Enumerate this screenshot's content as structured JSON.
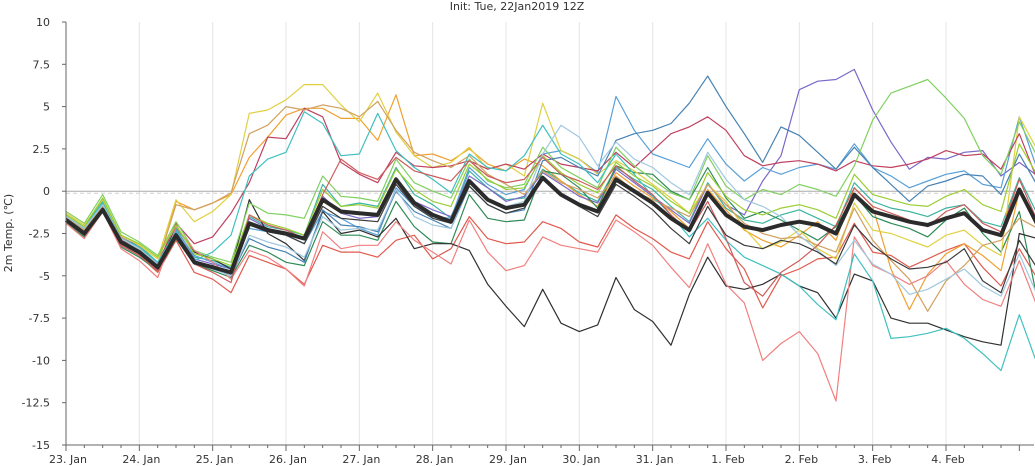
{
  "chart_data": {
    "type": "line",
    "title": "Init: Tue, 22Jan2019 12Z",
    "ylabel": "2m Temp. (℃)",
    "ylim": [
      -15,
      10
    ],
    "yticks": [
      10,
      7.5,
      5,
      2.5,
      0,
      -2.5,
      -5,
      -7.5,
      -10,
      -12.5,
      -15
    ],
    "ytick_labels": [
      "10",
      "7.5",
      "5",
      "2.5",
      "0",
      "-2.5",
      "-5",
      "-7.5",
      "-10",
      "-12.5",
      "-15"
    ],
    "xlim": [
      0,
      13.2
    ],
    "xticks": [
      0,
      1,
      2,
      3,
      4,
      5,
      6,
      7,
      8,
      9,
      10,
      11,
      12
    ],
    "xtick_labels": [
      "23. Jan",
      "24. Jan",
      "25. Jan",
      "26. Jan",
      "27. Jan",
      "28. Jan",
      "29. Jan",
      "30. Jan",
      "31. Jan",
      "1. Feb",
      "2. Feb",
      "3. Feb",
      "4. Feb"
    ],
    "x_step_days": 0.25,
    "grid": "vertical",
    "zero_line": true,
    "mean_color": "#2b2b2b",
    "series_colors": [
      "#e05a4e",
      "#3cb4a0",
      "#f0a030",
      "#7b68c8",
      "#2e8b57",
      "#5aa0d8",
      "#e0d040",
      "#303030",
      "#c04060",
      "#80d060",
      "#f08080",
      "#4682b4",
      "#d2a060",
      "#40c0c0",
      "#9acd32",
      "#a0c8e0",
      "#cd5c5c",
      "#3c3c3c"
    ],
    "mean": [
      -1.7,
      -2.5,
      -1.1,
      -3.0,
      -3.6,
      -4.5,
      -2.6,
      -4.2,
      -4.5,
      -4.8,
      -1.9,
      -2.3,
      -2.5,
      -2.8,
      -0.5,
      -1.2,
      -1.3,
      -1.4,
      0.7,
      -0.7,
      -1.4,
      -1.8,
      0.6,
      -0.5,
      -1.0,
      -0.8,
      0.8,
      -0.2,
      -0.8,
      -1.2,
      0.7,
      0.0,
      -0.7,
      -1.6,
      -2.3,
      -0.1,
      -1.4,
      -2.1,
      -2.3,
      -2.0,
      -1.8,
      -2.0,
      -2.5,
      -0.2,
      -1.2,
      -1.5,
      -1.8,
      -2.0,
      -1.6,
      -1.3,
      -2.3,
      -2.6,
      0.1,
      -2.0
    ],
    "series": [
      {
        "values": [
          -1.8,
          -2.5,
          -1.0,
          -3.2,
          -3.8,
          -4.8,
          -2.9,
          -4.8,
          -5.2,
          -6.0,
          -3.8,
          -4.2,
          -4.6,
          -5.5,
          -3.2,
          -3.6,
          -3.6,
          -3.9,
          -2.9,
          -2.6,
          -4.0,
          -3.4,
          -1.5,
          -2.8,
          -3.1,
          -3.0,
          -1.8,
          -2.2,
          -3.0,
          -3.3,
          -1.4,
          -2.2,
          -2.8,
          -3.6,
          -4.0,
          -1.8,
          -3.4,
          -4.6,
          -6.9,
          -5.0,
          -4.6,
          -4.0,
          -3.9,
          -1.9,
          -3.6,
          -3.8,
          -4.5,
          -4.0,
          -3.5,
          -3.1,
          -4.5,
          -5.6,
          -3.4,
          -5.2
        ]
      },
      {
        "values": [
          -1.4,
          -2.1,
          -0.6,
          -2.8,
          -3.2,
          -4.2,
          -2.2,
          -3.9,
          -4.1,
          -4.5,
          -1.5,
          -2.1,
          -2.3,
          -2.6,
          0.4,
          -0.9,
          -0.7,
          -0.9,
          1.4,
          -0.2,
          -0.8,
          -1.6,
          1.2,
          0.2,
          -0.5,
          -0.4,
          1.3,
          0.6,
          -0.1,
          -0.6,
          1.4,
          0.7,
          0.1,
          -0.9,
          -1.8,
          0.5,
          -1.0,
          -1.7,
          -1.9,
          -1.4,
          -1.1,
          -1.6,
          -2.1,
          0.5,
          -0.6,
          -1.0,
          -1.2,
          -1.5,
          -1.0,
          -0.8,
          -1.8,
          -2.1,
          0.8,
          -1.4
        ]
      },
      {
        "values": [
          -1.6,
          -2.4,
          -0.9,
          -2.9,
          -3.5,
          -4.4,
          -0.6,
          -1.1,
          -0.7,
          -0.2,
          2.0,
          3.2,
          4.5,
          4.9,
          4.9,
          4.3,
          4.3,
          3.0,
          5.7,
          2.1,
          2.2,
          1.8,
          2.5,
          1.6,
          1.2,
          1.9,
          1.5,
          0.6,
          -0.2,
          -0.9,
          1.1,
          0.3,
          -0.4,
          -1.2,
          -2.2,
          0.1,
          -1.1,
          -2.3,
          -2.9,
          -3.3,
          -2.6,
          -1.8,
          -2.9,
          0.2,
          -0.9,
          -4.6,
          -7.0,
          -4.9,
          -3.7,
          -3.1,
          -3.8,
          -4.7,
          0.0,
          -2.2
        ]
      },
      {
        "values": [
          -1.5,
          -2.2,
          -0.8,
          -2.7,
          -3.3,
          -4.3,
          -2.4,
          -4.0,
          -4.3,
          -4.6,
          -1.6,
          -2.2,
          -2.5,
          -2.8,
          -0.3,
          -1.3,
          -1.6,
          -1.5,
          0.8,
          -0.6,
          -1.1,
          -1.5,
          0.9,
          0.2,
          -0.6,
          -0.3,
          1.1,
          0.4,
          -0.3,
          -0.7,
          1.3,
          0.5,
          -0.3,
          -1.1,
          -1.9,
          0.4,
          -0.8,
          -1.4,
          0.6,
          2.1,
          6.0,
          6.5,
          6.6,
          7.2,
          4.8,
          2.9,
          1.3,
          2.0,
          1.9,
          2.3,
          2.4,
          0.9,
          1.7,
          0.9
        ]
      },
      {
        "values": [
          -1.9,
          -2.7,
          -1.2,
          -3.3,
          -3.9,
          -4.7,
          -2.8,
          -4.3,
          -4.7,
          -5.1,
          -3.2,
          -3.6,
          -4.2,
          -4.4,
          -1.8,
          -2.6,
          -2.6,
          -2.9,
          -0.6,
          -2.1,
          -3.0,
          -3.1,
          -0.2,
          -1.6,
          -1.8,
          -1.7,
          1.2,
          1.0,
          0.2,
          -1.0,
          1.5,
          1.1,
          1.0,
          0.0,
          -0.5,
          1.4,
          -0.4,
          -1.6,
          -1.2,
          -1.7,
          -2.3,
          -2.9,
          -2.1,
          -0.2,
          -1.5,
          -1.9,
          -2.2,
          -2.7,
          -1.7,
          -1.0,
          -2.5,
          -3.6,
          -1.2,
          -6.5
        ]
      },
      {
        "values": [
          -1.6,
          -2.3,
          -1.0,
          -2.9,
          -3.5,
          -4.5,
          -2.3,
          -3.8,
          -4.2,
          -4.6,
          -2.2,
          -2.4,
          -2.6,
          -3.1,
          -1.2,
          -1.6,
          -2.2,
          -2.6,
          0.2,
          -0.9,
          -1.5,
          -1.6,
          1.4,
          0.4,
          -0.2,
          0.1,
          2.2,
          2.4,
          1.9,
          1.1,
          5.6,
          3.6,
          2.2,
          1.8,
          1.4,
          3.1,
          1.6,
          0.6,
          1.4,
          1.0,
          1.4,
          1.6,
          1.3,
          2.8,
          1.4,
          0.9,
          0.2,
          0.6,
          1.0,
          1.2,
          0.4,
          0.2,
          4.4,
          1.2
        ]
      },
      {
        "values": [
          -1.3,
          -2.0,
          -0.5,
          -2.6,
          -3.2,
          -4.0,
          -0.5,
          -1.8,
          -1.2,
          -0.2,
          4.6,
          4.8,
          5.4,
          6.3,
          6.3,
          5.1,
          4.1,
          5.8,
          3.5,
          2.1,
          1.4,
          1.7,
          2.6,
          1.3,
          1.6,
          0.9,
          5.2,
          2.4,
          1.9,
          1.0,
          1.8,
          1.2,
          0.4,
          -0.4,
          -1.3,
          0.4,
          -0.6,
          -2.2,
          -3.4,
          -3.0,
          -2.3,
          -3.4,
          -4.0,
          -0.7,
          -2.3,
          -2.5,
          -2.9,
          -3.3,
          -2.6,
          -2.3,
          -3.2,
          -3.8,
          4.4,
          2.4
        ]
      },
      {
        "values": [
          -1.7,
          -2.6,
          -1.1,
          -3.1,
          -3.7,
          -4.6,
          -2.1,
          -3.6,
          -4.0,
          -4.6,
          -0.5,
          -2.5,
          -3.1,
          -4.1,
          -1.2,
          -2.5,
          -2.3,
          -2.7,
          -1.6,
          -3.4,
          -3.1,
          -3.1,
          -3.5,
          -5.5,
          -6.8,
          -8.0,
          -5.8,
          -7.8,
          -8.3,
          -7.9,
          -5.1,
          -7.0,
          -7.7,
          -9.1,
          -6.1,
          -3.9,
          -5.6,
          -5.8,
          -5.5,
          -4.9,
          -5.6,
          -6.0,
          -7.5,
          -4.9,
          -5.3,
          -7.5,
          -7.8,
          -7.8,
          -8.2,
          -8.6,
          -8.9,
          -9.1,
          -2.5,
          -2.8
        ]
      },
      {
        "values": [
          -1.6,
          -2.2,
          -0.9,
          -2.9,
          -3.3,
          -4.3,
          -1.9,
          -3.1,
          -2.7,
          -1.3,
          0.5,
          3.2,
          3.1,
          4.9,
          4.4,
          1.7,
          1.0,
          0.5,
          2.3,
          1.5,
          1.4,
          1.5,
          1.8,
          1.3,
          1.6,
          1.3,
          2.2,
          1.6,
          1.4,
          1.2,
          2.3,
          1.4,
          2.4,
          3.4,
          3.8,
          4.4,
          3.6,
          2.1,
          1.5,
          1.7,
          1.8,
          1.6,
          1.2,
          1.8,
          1.5,
          1.4,
          1.6,
          1.9,
          2.4,
          2.1,
          2.2,
          1.3,
          3.4,
          0.6
        ]
      },
      {
        "values": [
          -1.2,
          -1.9,
          -0.2,
          -2.4,
          -3.0,
          -3.8,
          -1.8,
          -3.5,
          -3.9,
          -4.2,
          -0.7,
          -1.3,
          -1.4,
          -1.6,
          0.9,
          -0.3,
          -0.4,
          -0.6,
          1.9,
          0.5,
          0.0,
          -0.4,
          1.9,
          0.6,
          0.2,
          0.4,
          2.6,
          1.4,
          0.8,
          0.2,
          2.6,
          1.5,
          0.7,
          -0.1,
          -0.5,
          2.1,
          0.3,
          -0.5,
          0.1,
          -0.2,
          0.4,
          0.1,
          -0.3,
          1.5,
          4.2,
          5.8,
          6.2,
          6.6,
          5.5,
          4.3,
          2.1,
          1.0,
          4.1,
          2.0
        ]
      },
      {
        "values": [
          -1.9,
          -2.8,
          -1.2,
          -3.4,
          -4.1,
          -5.1,
          -2.1,
          -3.5,
          -4.2,
          -5.2,
          -3.5,
          -3.9,
          -4.6,
          -5.6,
          -2.4,
          -3.4,
          -3.2,
          -3.2,
          -1.8,
          -2.9,
          -3.6,
          -4.3,
          -1.7,
          -3.6,
          -4.7,
          -4.4,
          -2.7,
          -3.2,
          -3.4,
          -3.6,
          -1.7,
          -2.4,
          -3.2,
          -4.5,
          -5.7,
          -3.1,
          -5.5,
          -6.6,
          -10.0,
          -9.0,
          -8.3,
          -9.6,
          -12.4,
          -2.7,
          -4.4,
          -4.9,
          -5.5,
          -5.0,
          -4.1,
          -5.5,
          -6.4,
          -6.8,
          -4.1,
          -6.9
        ]
      },
      {
        "values": [
          -1.7,
          -2.4,
          -1.0,
          -3.1,
          -3.6,
          -4.5,
          -2.5,
          -4.1,
          -4.5,
          -5.0,
          -2.8,
          -3.3,
          -3.6,
          -4.2,
          -1.1,
          -2.0,
          -2.1,
          -2.4,
          0.0,
          -1.2,
          -1.7,
          -2.2,
          0.3,
          -0.8,
          -1.3,
          -1.1,
          1.8,
          2.0,
          1.4,
          0.9,
          3.0,
          3.4,
          3.6,
          4.0,
          5.2,
          6.8,
          5.0,
          3.4,
          1.7,
          3.8,
          3.3,
          2.3,
          1.3,
          2.6,
          1.4,
          0.4,
          -0.6,
          0.3,
          0.6,
          1.0,
          0.9,
          -0.2,
          2.2,
          0.3
        ]
      },
      {
        "values": [
          -1.5,
          -2.3,
          -0.9,
          -2.7,
          -3.4,
          -4.3,
          -0.8,
          -1.1,
          -0.7,
          -0.1,
          3.4,
          3.9,
          5.0,
          4.8,
          5.1,
          4.9,
          4.4,
          5.3,
          3.6,
          2.3,
          1.8,
          1.4,
          2.1,
          1.0,
          0.4,
          -0.2,
          1.2,
          0.5,
          0.1,
          -0.4,
          0.9,
          0.0,
          -0.5,
          -1.0,
          -1.5,
          0.4,
          -0.8,
          -1.9,
          -2.5,
          -2.8,
          -2.7,
          -3.2,
          -3.6,
          -1.0,
          -2.9,
          -4.1,
          -5.2,
          -7.1,
          -5.3,
          -4.4,
          -3.2,
          -2.9,
          -1.6,
          -2.2
        ]
      },
      {
        "values": [
          -1.5,
          -2.2,
          -0.7,
          -2.8,
          -3.3,
          -4.2,
          -2.4,
          -4.1,
          -3.6,
          -2.6,
          0.9,
          1.9,
          2.3,
          4.7,
          4.0,
          2.1,
          2.2,
          4.6,
          2.4,
          1.4,
          0.7,
          -0.1,
          2.2,
          1.4,
          1.2,
          2.1,
          3.9,
          2.2,
          1.6,
          0.5,
          2.2,
          1.0,
          -0.3,
          -1.4,
          -2.7,
          -1.6,
          -2.9,
          -3.9,
          -4.4,
          -4.9,
          -5.6,
          -6.7,
          -7.6,
          -3.7,
          -5.3,
          -8.7,
          -8.6,
          -8.4,
          -8.1,
          -8.7,
          -9.6,
          -10.6,
          -7.3,
          -10.3
        ]
      },
      {
        "values": [
          -1.4,
          -2.1,
          -0.4,
          -2.6,
          -3.1,
          -3.9,
          -2.0,
          -3.7,
          -4.0,
          -4.4,
          -1.4,
          -1.9,
          -2.2,
          -2.6,
          0.1,
          -0.9,
          -0.8,
          -1.0,
          1.3,
          0.1,
          -0.6,
          -0.9,
          1.6,
          0.7,
          0.1,
          0.2,
          2.1,
          1.1,
          0.4,
          -0.1,
          1.7,
          0.9,
          0.3,
          -0.6,
          -1.3,
          1.1,
          -0.3,
          -1.1,
          -1.4,
          -1.0,
          -0.8,
          -1.1,
          -1.6,
          1.0,
          -0.2,
          -0.5,
          -0.8,
          -0.9,
          -0.3,
          0.1,
          -0.8,
          -1.2,
          2.8,
          0.9
        ]
      },
      {
        "values": [
          -1.5,
          -2.2,
          -0.8,
          -2.8,
          -3.4,
          -4.3,
          -2.6,
          -4.2,
          -4.6,
          -5.0,
          -2.6,
          -3.0,
          -3.3,
          -3.9,
          -1.5,
          -2.3,
          -2.2,
          -2.3,
          0.1,
          -1.5,
          -2.0,
          -2.2,
          0.5,
          -0.5,
          -0.9,
          -0.6,
          2.2,
          3.9,
          3.2,
          1.5,
          2.9,
          1.9,
          1.4,
          0.5,
          -0.2,
          2.3,
          0.7,
          -0.5,
          -0.9,
          -1.5,
          -2.6,
          -3.5,
          -4.4,
          -2.9,
          -4.3,
          -4.9,
          -6.1,
          -5.8,
          -5.2,
          -4.6,
          -5.6,
          -6.2,
          -3.7,
          -6.2
        ]
      },
      {
        "values": [
          -1.8,
          -2.6,
          -1.2,
          -3.2,
          -3.8,
          -4.7,
          -2.7,
          -4.3,
          -4.8,
          -5.4,
          -1.4,
          -2.0,
          -2.3,
          -2.8,
          -0.2,
          1.9,
          1.1,
          0.7,
          2.0,
          1.2,
          0.9,
          0.6,
          1.8,
          0.9,
          0.5,
          0.7,
          2.0,
          1.0,
          0.6,
          0.1,
          1.5,
          0.6,
          -0.2,
          -1.4,
          -2.4,
          -0.6,
          -2.8,
          -5.4,
          -6.2,
          -4.8,
          -4.1,
          -3.2,
          -2.0,
          0.2,
          -0.9,
          -1.3,
          -1.7,
          -2.1,
          -1.2,
          -0.8,
          -1.9,
          -2.4,
          0.7,
          -1.8
        ]
      },
      {
        "values": [
          -1.6,
          -2.4,
          -1.0,
          -3.0,
          -3.6,
          -4.6,
          -2.5,
          -4.2,
          -4.4,
          -4.9,
          -2.0,
          -2.4,
          -2.6,
          -3.1,
          -0.9,
          -1.6,
          -1.7,
          -1.8,
          0.4,
          -0.9,
          -1.6,
          -1.9,
          0.3,
          -0.8,
          -1.3,
          -1.0,
          0.7,
          -0.2,
          -0.9,
          -1.5,
          0.4,
          -0.3,
          -1.1,
          -2.2,
          -3.1,
          -0.9,
          -2.6,
          -3.2,
          -3.4,
          -2.9,
          -3.1,
          -3.6,
          -4.3,
          -2.0,
          -3.2,
          -4.0,
          -4.6,
          -4.5,
          -4.2,
          -3.4,
          -5.3,
          -6.0,
          -2.9,
          -4.6
        ]
      }
    ]
  }
}
